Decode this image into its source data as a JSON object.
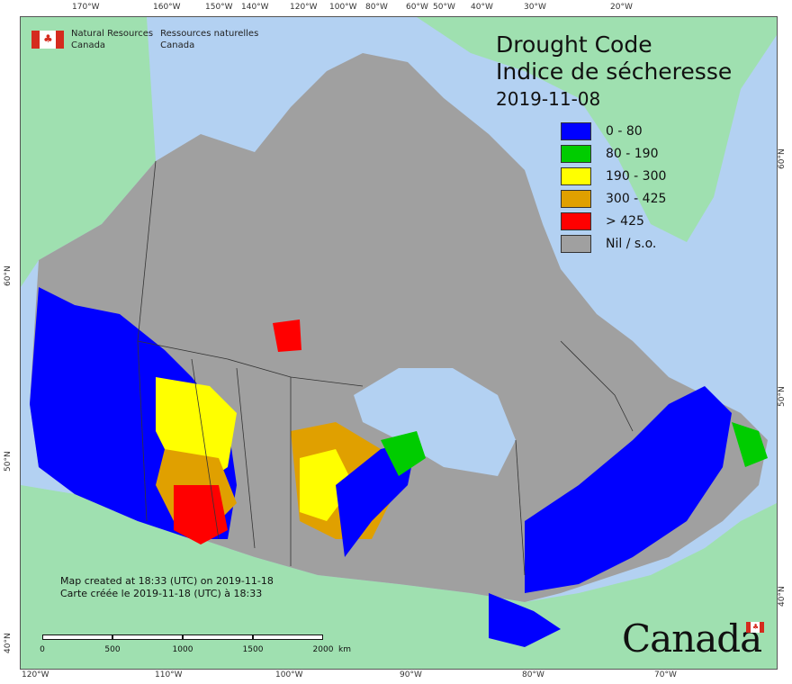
{
  "title": {
    "line1": "Drought Code",
    "line2": "Indice de sécheresse",
    "date": "2019-11-08"
  },
  "logo": {
    "en_line1": "Natural Resources",
    "en_line2": "Canada",
    "fr_line1": "Ressources naturelles",
    "fr_line2": "Canada"
  },
  "legend": [
    {
      "label": "0 - 80",
      "color": "#0000ff"
    },
    {
      "label": "80 - 190",
      "color": "#00cc00"
    },
    {
      "label": "190 - 300",
      "color": "#ffff00"
    },
    {
      "label": "300 - 425",
      "color": "#e0a000"
    },
    {
      "label": "> 425",
      "color": "#ff0000"
    },
    {
      "label": "Nil / s.o.",
      "color": "#a0a0a0"
    }
  ],
  "credits": {
    "en": "Map created at 18:33 (UTC) on 2019-11-18",
    "fr": "Carte créée le 2019-11-18 (UTC) à 18:33"
  },
  "scale": {
    "ticks": [
      "0",
      "500",
      "1000",
      "1500",
      "2000"
    ],
    "unit": "km"
  },
  "wordmark": "Canada",
  "graticule": {
    "top": [
      "170°W",
      "160°W",
      "150°W",
      "140°W",
      "120°W",
      "100°W",
      "80°W",
      "60°W",
      "50°W",
      "40°W",
      "30°W",
      "20°W"
    ],
    "bottom": [
      "120°W",
      "110°W",
      "100°W",
      "90°W",
      "80°W",
      "70°W"
    ],
    "left": [
      "60°N",
      "50°N",
      "40°N"
    ],
    "right": [
      "60°N",
      "50°N",
      "40°N"
    ]
  },
  "colors": {
    "water": "#b3d1f2",
    "other_land": "#9fe0b0",
    "canada_nil": "#a0a0a0"
  }
}
